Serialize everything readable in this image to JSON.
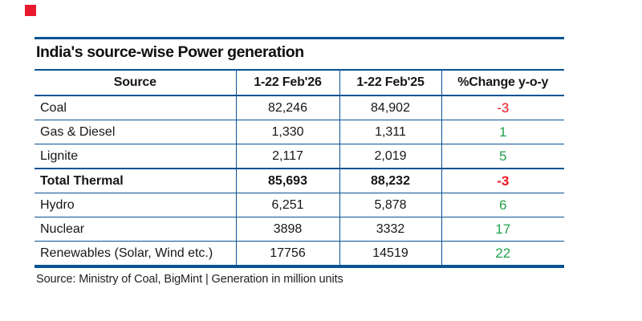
{
  "brand": {
    "marker_color": "#e8192c"
  },
  "title": {
    "text": "India's source-wise Power generation"
  },
  "table": {
    "columns": [
      "Source",
      "1-22 Feb'26",
      "1-22 Feb'25",
      "%Change y-o-y"
    ],
    "rows": [
      {
        "source": "Coal",
        "feb26": "82,246",
        "feb25": "84,902",
        "change": "-3",
        "trend": "negative",
        "bold": false
      },
      {
        "source": "Gas & Diesel",
        "feb26": "1,330",
        "feb25": "1,311",
        "change": "1",
        "trend": "positive",
        "bold": false
      },
      {
        "source": "Lignite",
        "feb26": "2,117",
        "feb25": "2,019",
        "change": "5",
        "trend": "positive",
        "bold": false
      },
      {
        "source": "Total Thermal",
        "feb26": "85,693",
        "feb25": "88,232",
        "change": "-3",
        "trend": "negative",
        "bold": true
      },
      {
        "source": "Hydro",
        "feb26": "6,251",
        "feb25": "5,878",
        "change": "6",
        "trend": "positive",
        "bold": false
      },
      {
        "source": "Nuclear",
        "feb26": "3898",
        "feb25": "3332",
        "change": "17",
        "trend": "positive",
        "bold": false
      },
      {
        "source": "Renewables (Solar, Wind etc.)",
        "feb26": "17756",
        "feb25": "14519",
        "change": "22",
        "trend": "positive",
        "bold": false
      }
    ]
  },
  "footer": {
    "text": "Source: Ministry of Coal, BigMint | Generation in million units"
  },
  "colors": {
    "rule_blue": "#0b5394",
    "positive_green": "#23a14d",
    "negative_red": "#ef161f",
    "text_dark": "#161616"
  },
  "chart_data": {
    "type": "table",
    "title": "India's source-wise Power generation",
    "columns": [
      "Source",
      "1-22 Feb'26",
      "1-22 Feb'25",
      "%Change y-o-y"
    ],
    "rows": [
      [
        "Coal",
        82246,
        84902,
        -3
      ],
      [
        "Gas & Diesel",
        1330,
        1311,
        1
      ],
      [
        "Lignite",
        2117,
        2019,
        5
      ],
      [
        "Total Thermal",
        85693,
        88232,
        -3
      ],
      [
        "Hydro",
        6251,
        5878,
        6
      ],
      [
        "Nuclear",
        3898,
        3332,
        17
      ],
      [
        "Renewables (Solar, Wind etc.)",
        17756,
        14519,
        22
      ]
    ],
    "units": "million units",
    "note": "Source: Ministry of Coal, BigMint | Generation in million units"
  }
}
